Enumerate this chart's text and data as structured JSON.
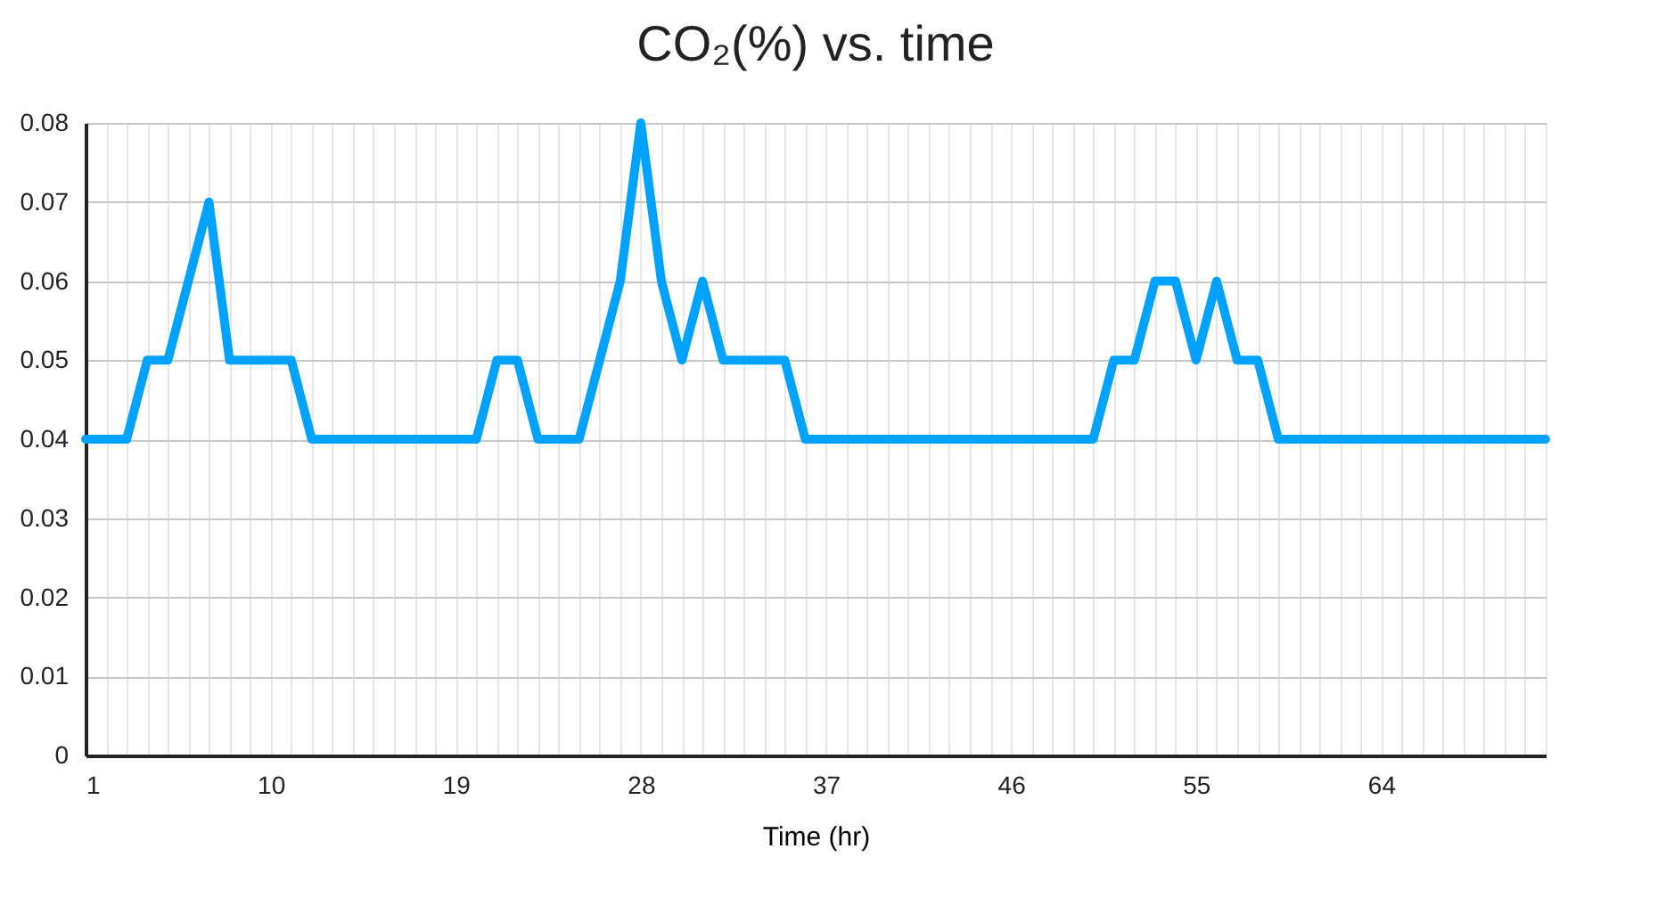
{
  "chart_data": {
    "type": "line",
    "title": "CO₂(%) vs. time",
    "xlabel": "Time (hr)",
    "x": [
      1,
      2,
      3,
      4,
      5,
      6,
      7,
      8,
      9,
      10,
      11,
      12,
      13,
      14,
      15,
      16,
      17,
      18,
      19,
      20,
      21,
      22,
      23,
      24,
      25,
      26,
      27,
      28,
      29,
      30,
      31,
      32,
      33,
      34,
      35,
      36,
      37,
      38,
      39,
      40,
      41,
      42,
      43,
      44,
      45,
      46,
      47,
      48,
      49,
      50,
      51,
      52,
      53,
      54,
      55,
      56,
      57,
      58,
      59,
      60,
      61,
      62,
      63,
      64,
      65,
      66,
      67,
      68,
      69,
      70,
      71,
      72
    ],
    "series": [
      {
        "color": "#00a2ff",
        "values": [
          0.04,
          0.04,
          0.04,
          0.05,
          0.05,
          0.06,
          0.07,
          0.05,
          0.05,
          0.05,
          0.05,
          0.04,
          0.04,
          0.04,
          0.04,
          0.04,
          0.04,
          0.04,
          0.04,
          0.04,
          0.05,
          0.05,
          0.04,
          0.04,
          0.04,
          0.05,
          0.06,
          0.08,
          0.06,
          0.05,
          0.06,
          0.05,
          0.05,
          0.05,
          0.05,
          0.04,
          0.04,
          0.04,
          0.04,
          0.04,
          0.04,
          0.04,
          0.04,
          0.04,
          0.04,
          0.04,
          0.04,
          0.04,
          0.04,
          0.04,
          0.05,
          0.05,
          0.06,
          0.06,
          0.05,
          0.06,
          0.05,
          0.05,
          0.04,
          0.04,
          0.04,
          0.04,
          0.04,
          0.04,
          0.04,
          0.04,
          0.04,
          0.04,
          0.04,
          0.04,
          0.04,
          0.04
        ]
      }
    ],
    "xlim": [
      1,
      72
    ],
    "xticks": [
      1,
      {
        "value": 2,
        "label": null
      },
      {
        "value": 3,
        "label": null
      },
      {
        "value": 4,
        "label": null
      },
      {
        "value": 5,
        "label": null
      },
      {
        "value": 6,
        "label": null
      },
      {
        "value": 7,
        "label": null
      },
      {
        "value": 8,
        "label": null
      },
      {
        "value": 9,
        "label": null
      },
      10,
      {
        "value": 11,
        "label": null
      },
      {
        "value": 12,
        "label": null
      },
      {
        "value": 13,
        "label": null
      },
      {
        "value": 14,
        "label": null
      },
      {
        "value": 15,
        "label": null
      },
      {
        "value": 16,
        "label": null
      },
      {
        "value": 17,
        "label": null
      },
      {
        "value": 18,
        "label": null
      },
      19,
      {
        "value": 20,
        "label": null
      },
      {
        "value": 21,
        "label": null
      },
      {
        "value": 22,
        "label": null
      },
      {
        "value": 23,
        "label": null
      },
      {
        "value": 24,
        "label": null
      },
      {
        "value": 25,
        "label": null
      },
      {
        "value": 26,
        "label": null
      },
      {
        "value": 27,
        "label": null
      },
      28,
      {
        "value": 29,
        "label": null
      },
      {
        "value": 30,
        "label": null
      },
      {
        "value": 31,
        "label": null
      },
      {
        "value": 32,
        "label": null
      },
      {
        "value": 33,
        "label": null
      },
      {
        "value": 34,
        "label": null
      },
      {
        "value": 35,
        "label": null
      },
      {
        "value": 36,
        "label": null
      },
      37,
      {
        "value": 38,
        "label": null
      },
      {
        "value": 39,
        "label": null
      },
      {
        "value": 40,
        "label": null
      },
      {
        "value": 41,
        "label": null
      },
      {
        "value": 42,
        "label": null
      },
      {
        "value": 43,
        "label": null
      },
      {
        "value": 44,
        "label": null
      },
      {
        "value": 45,
        "label": null
      },
      46,
      {
        "value": 47,
        "label": null
      },
      {
        "value": 48,
        "label": null
      },
      {
        "value": 49,
        "label": null
      },
      {
        "value": 50,
        "label": null
      },
      {
        "value": 51,
        "label": null
      },
      {
        "value": 52,
        "label": null
      },
      {
        "value": 53,
        "label": null
      },
      {
        "value": 54,
        "label": null
      },
      55,
      {
        "value": 56,
        "label": null
      },
      {
        "value": 57,
        "label": null
      },
      {
        "value": 58,
        "label": null
      },
      {
        "value": 59,
        "label": null
      },
      {
        "value": 60,
        "label": null
      },
      {
        "value": 61,
        "label": null
      },
      {
        "value": 62,
        "label": null
      },
      {
        "value": 63,
        "label": null
      },
      64,
      {
        "value": 65,
        "label": null
      },
      {
        "value": 66,
        "label": null
      },
      {
        "value": 67,
        "label": null
      },
      {
        "value": 68,
        "label": null
      },
      {
        "value": 69,
        "label": null
      },
      {
        "value": 70,
        "label": null
      },
      {
        "value": 71,
        "label": null
      },
      {
        "value": 72,
        "label": null
      }
    ],
    "ylim": [
      0,
      0.08
    ],
    "yticks": [
      0,
      0.01,
      0.02,
      0.03,
      0.04,
      0.05,
      0.06,
      0.07,
      0.08
    ],
    "grid": true,
    "marker": "none",
    "line_style": "solid"
  }
}
